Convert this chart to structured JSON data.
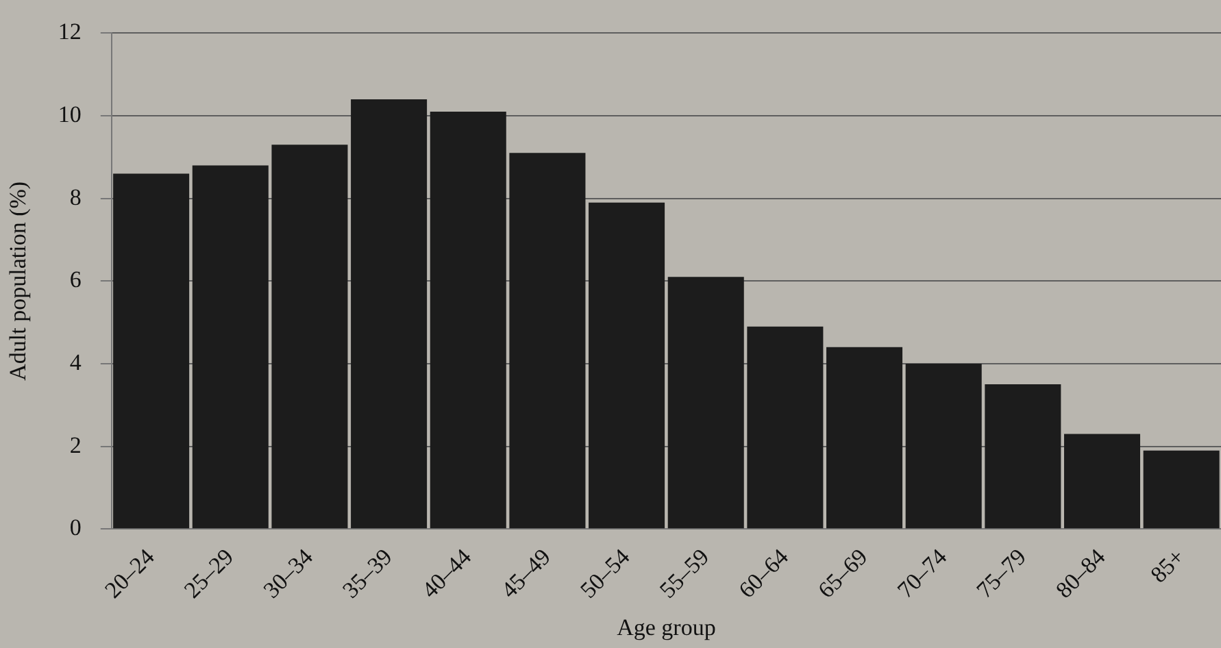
{
  "chart_data": {
    "type": "bar",
    "xlabel": "Age group",
    "ylabel": "Adult population (%)",
    "categories": [
      "20–24",
      "25–29",
      "30–34",
      "35–39",
      "40–44",
      "45–49",
      "50–54",
      "55–59",
      "60–64",
      "65–69",
      "70–74",
      "75–79",
      "80–84",
      "85+"
    ],
    "values": [
      8.6,
      8.8,
      9.3,
      10.4,
      10.1,
      9.1,
      7.9,
      6.1,
      4.9,
      4.4,
      4.0,
      3.5,
      2.3,
      1.9
    ],
    "color": "#1c1c1c",
    "ylim": [
      0,
      12
    ],
    "yticks": [
      0,
      2,
      4,
      6,
      8,
      10,
      12
    ],
    "grid": "y",
    "legend": false
  }
}
